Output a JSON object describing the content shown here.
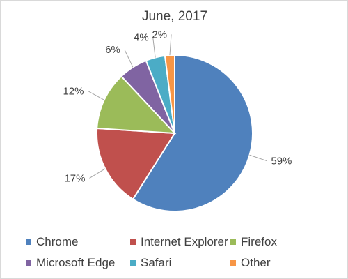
{
  "chart_data": {
    "type": "pie",
    "title": "June, 2017",
    "categories": [
      "Chrome",
      "Internet Explorer",
      "Firefox",
      "Microsoft Edge",
      "Safari",
      "Other"
    ],
    "values": [
      59,
      17,
      12,
      6,
      4,
      2
    ],
    "labels": [
      "59%",
      "17%",
      "12%",
      "6%",
      "4%",
      "2%"
    ],
    "colors": [
      "#4f81bd",
      "#c0504d",
      "#9bbb59",
      "#8064a2",
      "#4bacc6",
      "#f79646"
    ],
    "legend_position": "bottom"
  }
}
